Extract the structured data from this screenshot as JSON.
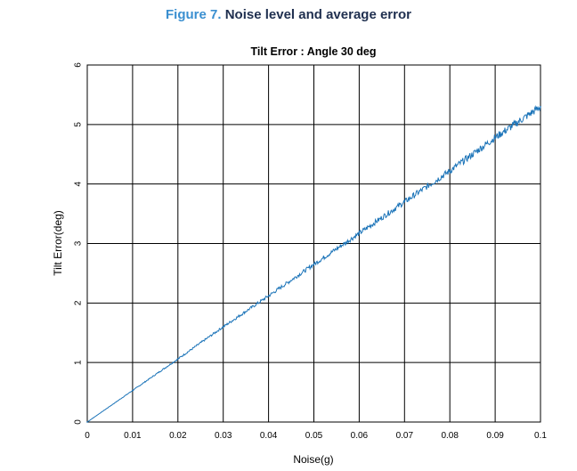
{
  "figure": {
    "number": "Figure 7.",
    "title": "Noise level and average error"
  },
  "colors": {
    "series": "#1a73b8",
    "caption_number": "#3a8fd0",
    "caption_title": "#1f2f4f",
    "grid": "#000000"
  },
  "chart_data": {
    "type": "line",
    "title": "Tilt Error : Angle 30 deg",
    "xlabel": "Noise(g)",
    "ylabel": "Tilt Error(deg)",
    "xlim": [
      0,
      0.1
    ],
    "ylim": [
      0,
      6
    ],
    "grid": true,
    "x_ticks": [
      0,
      0.01,
      0.02,
      0.03,
      0.04,
      0.05,
      0.06,
      0.07,
      0.08,
      0.09,
      0.1
    ],
    "x_tick_labels": [
      "0",
      "0.01",
      "0.02",
      "0.03",
      "0.04",
      "0.05",
      "0.06",
      "0.07",
      "0.08",
      "0.09",
      "0.1"
    ],
    "y_ticks": [
      0,
      1,
      2,
      3,
      4,
      5,
      6
    ],
    "y_tick_labels": [
      "0",
      "1",
      "2",
      "3",
      "4",
      "5",
      "6"
    ],
    "series": [
      {
        "x": [
          0,
          0.01,
          0.02,
          0.03,
          0.04,
          0.05,
          0.06,
          0.07,
          0.08,
          0.09,
          0.1
        ],
        "values": [
          0,
          0.53,
          1.06,
          1.6,
          2.12,
          2.65,
          3.17,
          3.7,
          4.22,
          4.78,
          5.3
        ]
      }
    ]
  }
}
